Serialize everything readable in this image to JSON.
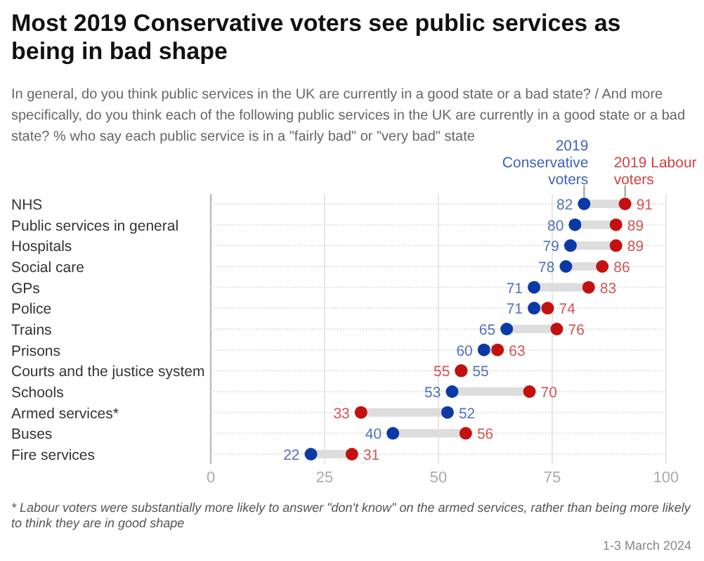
{
  "chart_data": {
    "type": "scatter",
    "orientation": "horizontal",
    "title": "Most 2019 Conservative voters see public services as being in bad shape",
    "subtitle": "In general, do you think public services in the UK are currently in a good state or a bad state? / And more specifically, do you think each of the following public services in the UK are currently in a good state or a bad state? % who say each public service is in a \"fairly bad\" or \"very bad\" state",
    "categories": [
      "NHS",
      "Public services in general",
      "Hospitals",
      "Social care",
      "GPs",
      "Police",
      "Trains",
      "Prisons",
      "Courts and the justice system",
      "Schools",
      "Armed services*",
      "Buses",
      "Fire services"
    ],
    "series": [
      {
        "name": "2019 Conservative voters",
        "color": "#0b3aa6",
        "values": [
          82,
          80,
          79,
          78,
          71,
          71,
          65,
          60,
          55,
          53,
          52,
          40,
          22
        ]
      },
      {
        "name": "2019 Labour voters",
        "color": "#c4100f",
        "values": [
          91,
          89,
          89,
          86,
          83,
          74,
          76,
          63,
          55,
          70,
          33,
          56,
          31
        ]
      }
    ],
    "xlim": [
      0,
      100
    ],
    "xticks": [
      0,
      25,
      50,
      75,
      100
    ],
    "grid": true,
    "data_labels": true,
    "legend": "top right",
    "marker": "circle",
    "annotations": [
      "* Labour voters were substantially more likely to answer \"don't know\" on the armed services, rather than being more likely to think they are in good shape",
      "1-3 March 2024"
    ]
  }
}
